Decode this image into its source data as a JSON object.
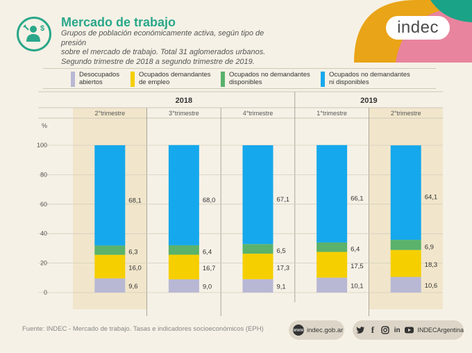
{
  "header": {
    "title": "Mercado de trabajo",
    "subtitle_lines": [
      "Grupos de población económicamente activa, según tipo de presión",
      "sobre el mercado de trabajo. Total 31 aglomerados urbanos.",
      "Segundo trimestre de 2018 a segundo trimestre de 2019."
    ],
    "logo_text": "indec",
    "icon": "worker-tools-money-icon"
  },
  "legend": [
    {
      "lines": [
        "Desocupados",
        "abiertos"
      ],
      "color": "#b8b8d4"
    },
    {
      "lines": [
        "Ocupados demandantes",
        "de empleo"
      ],
      "color": "#f5cf00"
    },
    {
      "lines": [
        "Ocupados no demandantes",
        "disponibles"
      ],
      "color": "#5ab26b"
    },
    {
      "lines": [
        "Ocupados no demandantes",
        "ni disponibles"
      ],
      "color": "#16a8ec"
    }
  ],
  "chart_data": {
    "type": "bar",
    "stacked": true,
    "years": [
      "2018",
      "2019"
    ],
    "categories": [
      "2°trimestre",
      "3°trimestre",
      "4°trimestre",
      "1°trimestre",
      "2°trimestre"
    ],
    "category_years": [
      "2018",
      "2018",
      "2018",
      "2019",
      "2019"
    ],
    "ylabel": "%",
    "ylim": [
      0,
      100
    ],
    "yticks": [
      0,
      20,
      40,
      60,
      80,
      100
    ],
    "series": [
      {
        "name": "Desocupados abiertos",
        "color": "#b8b8d4",
        "values": [
          9.6,
          9.0,
          9.1,
          10.1,
          10.6
        ],
        "labels": [
          "9,6",
          "9,0",
          "9,1",
          "10,1",
          "10,6"
        ]
      },
      {
        "name": "Ocupados demandantes de empleo",
        "color": "#f5cf00",
        "values": [
          16.0,
          16.7,
          17.3,
          17.5,
          18.3
        ],
        "labels": [
          "16,0",
          "16,7",
          "17,3",
          "17,5",
          "18,3"
        ]
      },
      {
        "name": "Ocupados no demandantes disponibles",
        "color": "#5ab26b",
        "values": [
          6.3,
          6.4,
          6.5,
          6.4,
          6.9
        ],
        "labels": [
          "6,3",
          "6,4",
          "6,5",
          "6,4",
          "6,9"
        ]
      },
      {
        "name": "Ocupados no demandantes ni disponibles",
        "color": "#16a8ec",
        "values": [
          68.1,
          68.0,
          67.1,
          66.1,
          64.1
        ],
        "labels": [
          "68,1",
          "68,0",
          "67,1",
          "66,1",
          "64,1"
        ]
      }
    ],
    "highlight_color": "#efe2c2",
    "grid": false
  },
  "footer": {
    "source": "Fuente: INDEC - Mercado de trabajo. Tasas e indicadores socioeconómicos (EPH)",
    "website": "indec.gob.ar",
    "web_badge": "www",
    "social_handle": "INDECArgentina",
    "social_icons": [
      "twitter-icon",
      "facebook-icon",
      "instagram-icon",
      "linkedin-icon",
      "youtube-icon"
    ]
  }
}
